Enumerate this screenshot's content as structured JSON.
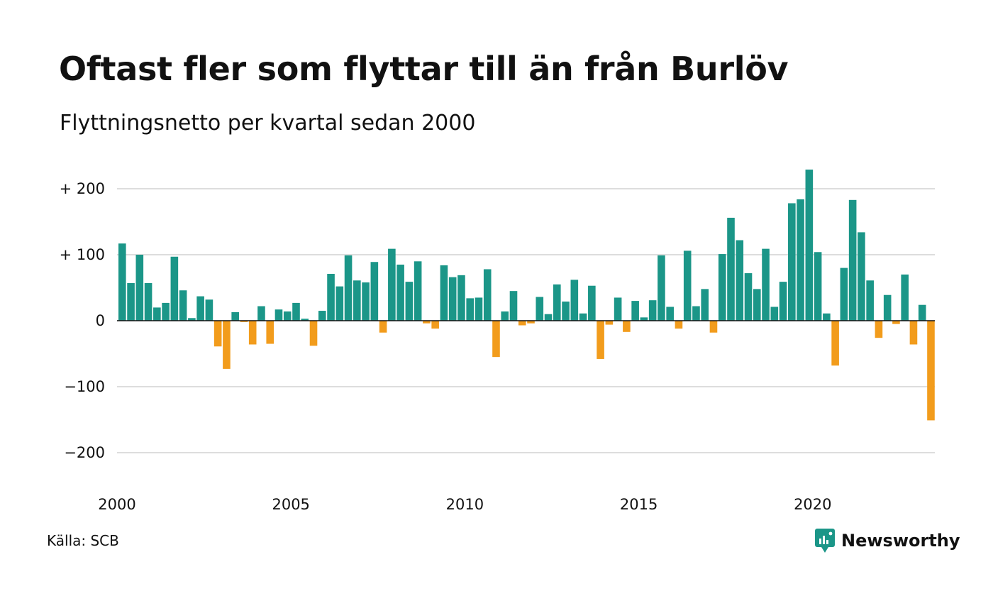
{
  "header": {
    "title": "Oftast fler som flyttar till än från Burlöv",
    "subtitle": "Flyttningsnetto per kvartal sedan 2000"
  },
  "footer": {
    "source": "Källa: SCB",
    "brand": "Newsworthy",
    "brand_icon": "newsworthy-logo-icon"
  },
  "colors": {
    "positive": "#1b9688",
    "negative": "#f29c1c",
    "grid": "#dddddd",
    "axis_zero": "#111111",
    "text": "#111111"
  },
  "chart_data": {
    "type": "bar",
    "title": "Oftast fler som flyttar till än från Burlöv",
    "subtitle": "Flyttningsnetto per kvartal sedan 2000",
    "xlabel": "",
    "ylabel": "",
    "ylim": [
      -225,
      245
    ],
    "grid": true,
    "y_ticks": [
      {
        "value": 200,
        "label": "+ 200"
      },
      {
        "value": 100,
        "label": "+ 100"
      },
      {
        "value": 0,
        "label": "0"
      },
      {
        "value": -100,
        "label": "−100"
      },
      {
        "value": -200,
        "label": "−200"
      }
    ],
    "x_ticks": [
      {
        "year": 2000,
        "label": "2000"
      },
      {
        "year": 2005,
        "label": "2005"
      },
      {
        "year": 2010,
        "label": "2010"
      },
      {
        "year": 2015,
        "label": "2015"
      },
      {
        "year": 2020,
        "label": "2020"
      }
    ],
    "start_year": 2000,
    "values": [
      117,
      57,
      100,
      57,
      20,
      27,
      97,
      46,
      4,
      37,
      32,
      -39,
      -73,
      13,
      -2,
      -36,
      22,
      -35,
      17,
      14,
      27,
      3,
      -38,
      15,
      71,
      52,
      99,
      61,
      58,
      89,
      -18,
      109,
      85,
      59,
      90,
      -4,
      -12,
      84,
      66,
      69,
      34,
      35,
      78,
      -55,
      14,
      45,
      -7,
      -4,
      36,
      10,
      55,
      29,
      62,
      11,
      53,
      -58,
      -6,
      35,
      -17,
      30,
      5,
      31,
      99,
      21,
      -12,
      106,
      22,
      48,
      -18,
      101,
      156,
      122,
      72,
      48,
      109,
      21,
      59,
      178,
      184,
      229,
      104,
      11,
      -68,
      80,
      183,
      134,
      61,
      -26,
      39,
      -5,
      70,
      -36,
      24,
      -151
    ]
  }
}
